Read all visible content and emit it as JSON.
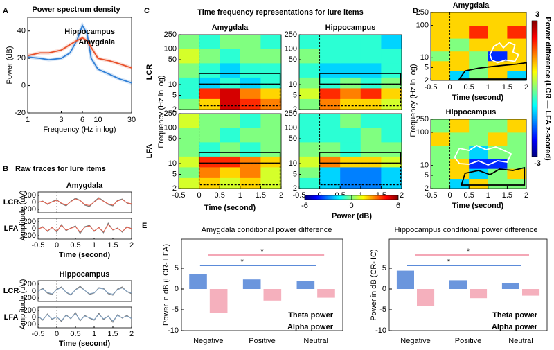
{
  "chart_data": [
    {
      "type": "line",
      "panel": "A",
      "title": "Power spectrum density",
      "xlabel": "Frequency (Hz in log)",
      "ylabel": "Power (dB)",
      "log_x": true,
      "xlim": [
        1,
        30
      ],
      "xticks": [
        1,
        3,
        6,
        10,
        30
      ],
      "ylim": [
        -20,
        50
      ],
      "yticks": [
        -20,
        0,
        20,
        40
      ],
      "x": [
        1,
        1.5,
        2,
        3,
        4,
        5,
        6,
        7,
        8,
        10,
        15,
        20,
        30
      ],
      "series": [
        {
          "name": "Hippocampus",
          "color": "#2f7fd6",
          "values": [
            21,
            20,
            19,
            20,
            24,
            33,
            44,
            38,
            20,
            12,
            8,
            5,
            2
          ]
        },
        {
          "name": "Amygdala",
          "color": "#e8502a",
          "values": [
            22,
            24,
            24,
            26,
            30,
            33,
            35,
            33,
            28,
            20,
            18,
            16,
            13
          ]
        }
      ]
    },
    {
      "type": "traces",
      "panel": "B",
      "title": "Raw traces for lure items",
      "xlabel": "Time (second)",
      "ylabel": "Amplitude (uV)",
      "xlim": [
        -0.5,
        2
      ],
      "xticks": [
        -0.5,
        0,
        0.5,
        1,
        1.5,
        2
      ],
      "ylim": [
        -300,
        300
      ],
      "yticks": [
        -200,
        0,
        200
      ],
      "x": [
        -0.5,
        -0.375,
        -0.25,
        -0.125,
        0,
        0.125,
        0.25,
        0.375,
        0.5,
        0.625,
        0.75,
        0.875,
        1,
        1.125,
        1.25,
        1.375,
        1.5,
        1.625,
        1.75,
        1.875,
        2
      ],
      "groups": [
        {
          "title": "Amygdala",
          "rows": [
            {
              "label": "LCR",
              "series": [
                {
                  "color": "#777777",
                  "values": [
                    0,
                    40,
                    -60,
                    20,
                    80,
                    -40,
                    -100,
                    30,
                    120,
                    60,
                    -80,
                    -120,
                    20,
                    140,
                    40,
                    -60,
                    -100,
                    60,
                    100,
                    -20,
                    -60
                  ]
                },
                {
                  "color": "#e8604c",
                  "values": [
                    10,
                    30,
                    -40,
                    10,
                    60,
                    -20,
                    -80,
                    20,
                    100,
                    50,
                    -60,
                    -90,
                    10,
                    110,
                    30,
                    -40,
                    -80,
                    40,
                    80,
                    -10,
                    -40
                  ]
                }
              ]
            },
            {
              "label": "LFA",
              "series": [
                {
                  "color": "#777777",
                  "values": [
                    -20,
                    60,
                    -80,
                    40,
                    -100,
                    120,
                    -60,
                    20,
                    80,
                    -140,
                    60,
                    100,
                    -80,
                    40,
                    -120,
                    160,
                    -40,
                    20,
                    -100,
                    60,
                    0
                  ]
                },
                {
                  "color": "#e8604c",
                  "values": [
                    -10,
                    40,
                    -60,
                    30,
                    -70,
                    90,
                    -40,
                    10,
                    60,
                    -100,
                    40,
                    80,
                    -60,
                    30,
                    -90,
                    120,
                    -30,
                    10,
                    -80,
                    40,
                    0
                  ]
                }
              ]
            }
          ]
        },
        {
          "title": "Hippocampus",
          "rows": [
            {
              "label": "LCR",
              "series": [
                {
                  "color": "#777777",
                  "values": [
                    0,
                    80,
                    -60,
                    -100,
                    60,
                    120,
                    -40,
                    -120,
                    40,
                    140,
                    20,
                    -100,
                    -60,
                    100,
                    80,
                    -80,
                    -120,
                    60,
                    120,
                    -20,
                    -80
                  ]
                },
                {
                  "color": "#7f9fc0",
                  "values": [
                    0,
                    60,
                    -40,
                    -80,
                    40,
                    100,
                    -30,
                    -100,
                    30,
                    110,
                    20,
                    -80,
                    -50,
                    80,
                    60,
                    -60,
                    -90,
                    40,
                    90,
                    -10,
                    -60
                  ]
                }
              ]
            },
            {
              "label": "LFA",
              "series": [
                {
                  "color": "#777777",
                  "values": [
                    40,
                    -80,
                    100,
                    -60,
                    20,
                    -120,
                    80,
                    -40,
                    140,
                    -100,
                    60,
                    -20,
                    -80,
                    120,
                    -60,
                    40,
                    -140,
                    80,
                    -20,
                    60,
                    -40
                  ]
                },
                {
                  "color": "#7f9fc0",
                  "values": [
                    30,
                    -60,
                    80,
                    -40,
                    10,
                    -90,
                    60,
                    -30,
                    110,
                    -80,
                    40,
                    -10,
                    -60,
                    90,
                    -40,
                    30,
                    -100,
                    60,
                    -10,
                    40,
                    -30
                  ]
                }
              ]
            }
          ]
        }
      ]
    },
    {
      "type": "heatmap",
      "panel": "C",
      "title": "Time frequency representations for lure items",
      "columns": [
        "Amygdala",
        "Hippocampus"
      ],
      "rows": [
        "LCR",
        "LFA"
      ],
      "ylabel": "Frequency (Hz in log)",
      "xlabel": "Time (second)",
      "xlim": [
        -0.5,
        2
      ],
      "xticks": [
        -0.5,
        0,
        0.5,
        1,
        1.5,
        2
      ],
      "log_y": true,
      "ylim": [
        2,
        250
      ],
      "yticks": [
        2,
        5,
        10,
        50,
        100,
        250
      ],
      "xbins": [
        -0.5,
        0,
        0.5,
        1,
        1.5,
        2
      ],
      "ybins": [
        2,
        4,
        8,
        16,
        40,
        100,
        250
      ],
      "maps": [
        {
          "z": [
            [
              0,
              2,
              5,
              4,
              3
            ],
            [
              -1,
              4,
              5,
              3,
              2
            ],
            [
              -1,
              -2,
              -1,
              -2,
              -1
            ],
            [
              0,
              -1,
              -2,
              -1,
              -1
            ],
            [
              1,
              0,
              -1,
              0,
              0
            ],
            [
              0,
              -1,
              0,
              0,
              -1
            ]
          ]
        },
        {
          "z": [
            [
              0,
              3,
              2,
              2,
              1
            ],
            [
              1,
              4,
              3,
              4,
              2
            ],
            [
              0,
              -1,
              0,
              -1,
              0
            ],
            [
              -1,
              -2,
              -2,
              -2,
              -1
            ],
            [
              0,
              -1,
              -1,
              -1,
              -1
            ],
            [
              -1,
              -1,
              -1,
              -1,
              -2
            ]
          ]
        },
        {
          "z": [
            [
              1,
              2,
              1,
              2,
              1
            ],
            [
              0,
              3,
              2,
              3,
              1
            ],
            [
              1,
              4,
              4,
              3,
              2
            ],
            [
              0,
              -1,
              0,
              -1,
              0
            ],
            [
              0,
              0,
              -1,
              0,
              0
            ],
            [
              1,
              0,
              0,
              -1,
              0
            ]
          ]
        },
        {
          "z": [
            [
              -1,
              -2,
              -3,
              -3,
              -2
            ],
            [
              0,
              -2,
              -3,
              -3,
              -2
            ],
            [
              1,
              3,
              2,
              2,
              1
            ],
            [
              0,
              0,
              -1,
              0,
              0
            ],
            [
              -1,
              -1,
              -1,
              0,
              -1
            ],
            [
              -1,
              -1,
              0,
              -1,
              -1
            ]
          ]
        }
      ],
      "colormap": "jet",
      "clim": [
        -6,
        6
      ],
      "cticks": [
        -6,
        0,
        6
      ],
      "clabel": "Power (dB)"
    },
    {
      "type": "heatmap",
      "panel": "D",
      "ylabel": "Frequency (Hz in log)",
      "xlabel": "Time (second)",
      "xlim": [
        -0.5,
        2
      ],
      "xticks": [
        -0.5,
        0,
        0.5,
        1,
        1.5,
        2
      ],
      "log_y": true,
      "ylim": [
        2,
        250
      ],
      "yticks": [
        2,
        5,
        10,
        100,
        250
      ],
      "xbins": [
        -0.5,
        0,
        0.5,
        1,
        1.5,
        2
      ],
      "ybins": [
        2,
        4,
        8,
        16,
        40,
        100,
        250
      ],
      "maps": [
        {
          "title": "Amygdala",
          "z": [
            [
              1,
              -1,
              0,
              1,
              -1
            ],
            [
              1,
              1,
              0,
              1,
              1
            ],
            [
              0,
              1,
              0,
              -2,
              1
            ],
            [
              1,
              0,
              1,
              1,
              1
            ],
            [
              1,
              1,
              2,
              1,
              2
            ],
            [
              1,
              1,
              1,
              1,
              1
            ]
          ]
        },
        {
          "title": "Hippocampus",
          "z": [
            [
              0,
              -1,
              1,
              0,
              0
            ],
            [
              0,
              1,
              -1,
              0,
              1
            ],
            [
              0,
              1,
              -2,
              -2,
              0
            ],
            [
              0,
              0,
              -1,
              0,
              0
            ],
            [
              1,
              0,
              0,
              1,
              0
            ],
            [
              0,
              1,
              0,
              0,
              1
            ]
          ]
        }
      ],
      "colormap": "jet",
      "clim": [
        -3,
        3
      ],
      "cticks": [
        -3,
        3
      ],
      "clabel": "Power difference (LCR — LFA  z-scored)"
    },
    {
      "type": "bar",
      "panel": "E",
      "title": "Amygdala conditional power difference",
      "ylabel": "Power in dB (LCR- LFA)",
      "categories": [
        "Negative",
        "Positive",
        "Neutral"
      ],
      "series": [
        {
          "name": "Theta power",
          "color": "#5b8bd9",
          "values": [
            3.6,
            2.3,
            1.9
          ]
        },
        {
          "name": "Alpha power",
          "color": "#f4a7b6",
          "values": [
            -5.8,
            -2.8,
            -2.1
          ]
        }
      ],
      "ylim": [
        -10,
        12
      ],
      "yticks": [
        -10,
        -5,
        0,
        5
      ],
      "annotations": [
        "*",
        "*"
      ]
    },
    {
      "type": "bar",
      "title": "Hippocampus conditional power difference",
      "ylabel": "Power in dB (CR- IC)",
      "categories": [
        "Negative",
        "Positive",
        "Neutral"
      ],
      "series": [
        {
          "name": "Theta power",
          "color": "#5b8bd9",
          "values": [
            4.4,
            2.1,
            1.5
          ]
        },
        {
          "name": "Alpha power",
          "color": "#f4a7b6",
          "values": [
            -4,
            -2.2,
            -1.6
          ]
        }
      ],
      "ylim": [
        -10,
        12
      ],
      "yticks": [
        -10,
        -5,
        0,
        5
      ],
      "annotations": [
        "*",
        "*"
      ]
    }
  ]
}
